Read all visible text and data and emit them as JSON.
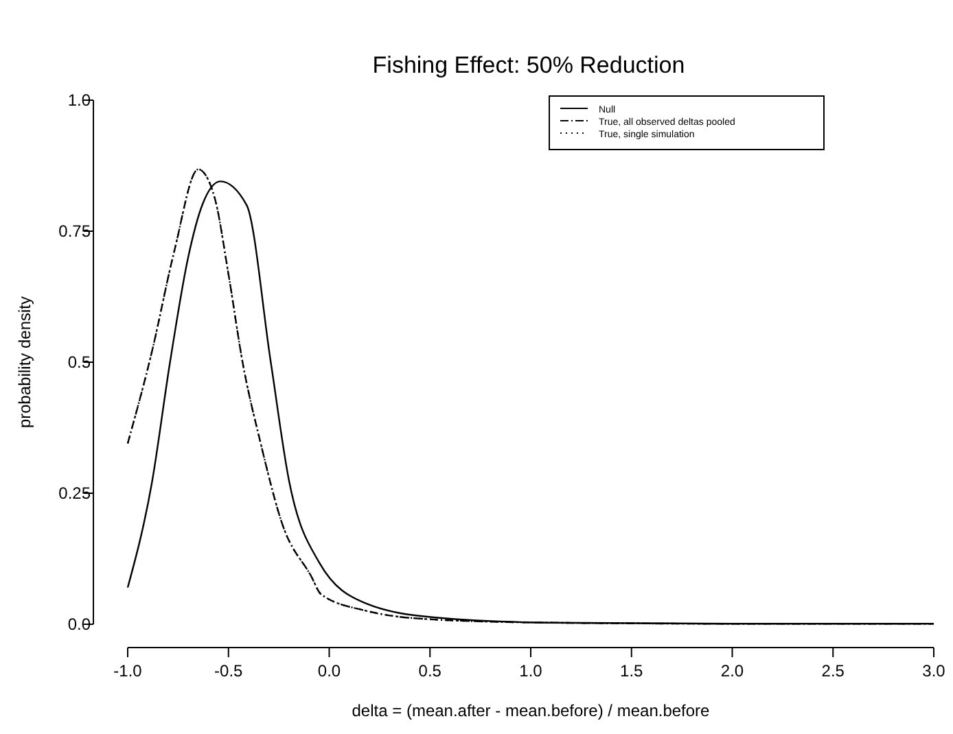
{
  "chart_data": {
    "type": "line",
    "title": "Fishing Effect: 50% Reduction",
    "xlabel": "delta = (mean.after - mean.before) / mean.before",
    "ylabel": "probability density",
    "xlim": [
      -1,
      3
    ],
    "xticks": [
      {
        "value": -1,
        "label": "-1.0"
      },
      {
        "value": -0.5,
        "label": "-0.5"
      },
      {
        "value": 0,
        "label": "0.0"
      },
      {
        "value": 0.5,
        "label": "0.5"
      },
      {
        "value": 1,
        "label": "1.0"
      },
      {
        "value": 1.5,
        "label": "1.5"
      },
      {
        "value": 2,
        "label": "2.0"
      },
      {
        "value": 2.5,
        "label": "2.5"
      },
      {
        "value": 3,
        "label": "3.0"
      }
    ],
    "ylim": [
      0,
      1
    ],
    "yticks": [
      {
        "value": 0,
        "label": "0.0"
      },
      0.25,
      0.5,
      0.75,
      {
        "value": 1,
        "label": "1.0"
      }
    ],
    "grid": false,
    "legend": "top right",
    "marker": "none",
    "series": [
      {
        "name": "Null",
        "color": "#000000",
        "line_style": "solid",
        "x": [
          -1,
          -0.88,
          -0.79,
          -0.7,
          -0.63,
          -0.54,
          -0.41,
          -0.29,
          -0.2,
          -0.05,
          0.18,
          0.52,
          1.09,
          2,
          3
        ],
        "values": [
          0.07,
          0.27,
          0.5,
          0.7,
          0.8,
          0.845,
          0.8,
          0.5,
          0.275,
          0.118,
          0.04,
          0.013,
          0.003,
          0.001,
          0.001
        ]
      },
      {
        "name": "True, all observed deltas pooled",
        "color": "#000000",
        "line_style": "dashdot",
        "x": [
          -1,
          -0.88,
          -0.77,
          -0.65,
          -0.57,
          -0.5,
          -0.43,
          -0.34,
          -0.23,
          -0.09,
          -0.04,
          0.18,
          0.52,
          1.09,
          2,
          3
        ],
        "values": [
          0.345,
          0.52,
          0.71,
          0.868,
          0.816,
          0.668,
          0.5,
          0.345,
          0.188,
          0.092,
          0.057,
          0.026,
          0.009,
          0.003,
          0.001,
          0.001
        ]
      },
      {
        "name": "True, single simulation",
        "color": "#000000",
        "line_style": "dotted",
        "x": [
          -1,
          -0.88,
          -0.77,
          -0.65,
          -0.57,
          -0.5,
          -0.43,
          -0.34,
          -0.23,
          -0.09,
          -0.04,
          0.18,
          0.52,
          1.09,
          2,
          3
        ],
        "values": [
          0.345,
          0.52,
          0.71,
          0.868,
          0.816,
          0.668,
          0.5,
          0.345,
          0.188,
          0.092,
          0.057,
          0.026,
          0.009,
          0.003,
          0.001,
          0.001
        ]
      }
    ]
  }
}
